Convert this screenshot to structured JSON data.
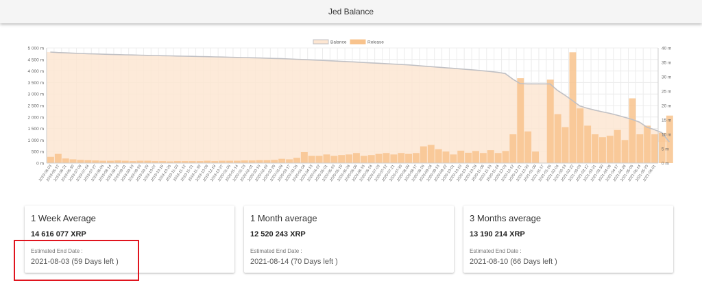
{
  "header": {
    "title": "Jed Balance"
  },
  "chart_data": {
    "type": "bar+line",
    "legend": [
      "Balance",
      "Release"
    ],
    "legend_position": "top-center",
    "colors": {
      "balance_fill": "#fde6d2",
      "balance_line": "#c0c0c4",
      "release": "#f8c38d",
      "highlight": "#e0141e"
    },
    "left_axis": {
      "ylim": [
        0,
        5000
      ],
      "ticks": [
        "0 m",
        "500 m",
        "1 000 m",
        "1 500 m",
        "2 000 m",
        "2 500 m",
        "3 000 m",
        "3 500 m",
        "4 000 m",
        "4 500 m",
        "5 000 m"
      ]
    },
    "right_axis": {
      "ylim": [
        0,
        40
      ],
      "ticks": [
        "0 m",
        "5 m",
        "10 m",
        "15 m",
        "20 m",
        "25 m",
        "30 m",
        "35 m",
        "40 m"
      ]
    },
    "x_ticks": [
      "2019-06-03",
      "2019-06-12",
      "2019-06-21",
      "2019-06-30",
      "2019-07-09",
      "2019-07-18",
      "2019-07-27",
      "2019-08-05",
      "2019-08-14",
      "2019-08-23",
      "2019-09-01",
      "2019-09-10",
      "2019-09-19",
      "2019-09-28",
      "2019-10-07",
      "2019-10-16",
      "2019-10-25",
      "2019-11-03",
      "2019-11-12",
      "2019-11-21",
      "2019-11-30",
      "2019-12-09",
      "2019-12-18",
      "2019-12-27",
      "2020-01-05",
      "2020-01-14",
      "2020-01-23",
      "2020-02-01",
      "2020-02-10",
      "2020-02-19",
      "2020-02-28",
      "2020-03-08",
      "2020-03-17",
      "2020-03-26",
      "2020-04-04",
      "2020-04-13",
      "2020-04-22",
      "2020-05-01",
      "2020-05-10",
      "2020-05-19",
      "2020-05-28",
      "2020-06-06",
      "2020-06-15",
      "2020-06-24",
      "2020-07-03",
      "2020-07-12",
      "2020-07-21",
      "2020-07-30",
      "2020-08-08",
      "2020-08-17",
      "2020-08-26",
      "2020-09-04",
      "2020-09-13",
      "2020-09-22",
      "2020-10-01",
      "2020-10-10",
      "2020-10-19",
      "2020-10-28",
      "2020-11-06",
      "2020-11-15",
      "2020-11-24",
      "2020-12-03",
      "2020-12-12",
      "2020-12-21",
      "2020-12-30",
      "2021-01-08",
      "2021-01-17",
      "2021-01-26",
      "2021-02-04",
      "2021-02-13",
      "2021-02-22",
      "2021-03-03",
      "2021-03-12",
      "2021-03-21",
      "2021-03-30",
      "2021-04-08",
      "2021-04-17",
      "2021-04-26",
      "2021-05-05",
      "2021-05-14",
      "2021-05-23",
      "2021-06-01"
    ],
    "balance": [
      4820,
      4800,
      4790,
      4775,
      4762,
      4750,
      4740,
      4730,
      4720,
      4712,
      4703,
      4695,
      4687,
      4680,
      4672,
      4665,
      4658,
      4650,
      4643,
      4636,
      4629,
      4621,
      4614,
      4606,
      4598,
      4590,
      4582,
      4574,
      4565,
      4556,
      4546,
      4535,
      4523,
      4510,
      4496,
      4482,
      4468,
      4453,
      4437,
      4420,
      4404,
      4387,
      4370,
      4352,
      4335,
      4317,
      4300,
      4282,
      4264,
      4240,
      4215,
      4190,
      4165,
      4140,
      4115,
      4090,
      4065,
      4040,
      4010,
      3980,
      3940,
      3890,
      3650,
      3450,
      3440,
      3440,
      3440,
      3440,
      3160,
      2950,
      2720,
      2480,
      2380,
      2300,
      2230,
      2160,
      2080,
      1990,
      1900,
      1780,
      1560,
      1450,
      1320,
      920
    ],
    "release": [
      2.2,
      3.2,
      1.6,
      1.3,
      1.1,
      1.0,
      0.9,
      0.8,
      0.8,
      0.9,
      0.8,
      0.7,
      0.8,
      0.8,
      0.7,
      0.7,
      0.6,
      0.7,
      0.7,
      0.7,
      0.7,
      0.8,
      0.7,
      0.8,
      0.8,
      0.8,
      0.9,
      0.9,
      1.0,
      1.0,
      1.1,
      1.5,
      1.3,
      1.8,
      3.8,
      2.5,
      2.5,
      3.0,
      2.5,
      2.8,
      3.0,
      3.5,
      2.5,
      2.8,
      3.2,
      3.5,
      3.0,
      3.5,
      3.2,
      3.5,
      5.8,
      6.3,
      4.8,
      4.0,
      3.0,
      4.3,
      3.6,
      4.2,
      3.5,
      4.5,
      3.5,
      4.2,
      10.0,
      29.5,
      11.0,
      4.0,
      0,
      29.0,
      17.0,
      12.5,
      38.5,
      19.0,
      13.0,
      10.0,
      9.0,
      9.5,
      11.5,
      8.0,
      22.5,
      10.0,
      13.0,
      10.0,
      10.5,
      16.5
    ],
    "grid": true
  },
  "cards": [
    {
      "title": "1 Week Average",
      "value": "14 616 077 XRP",
      "end_label": "Estimated End Date :",
      "end_date": "2021-08-03 (59 Days left )"
    },
    {
      "title": "1 Month average",
      "value": "12 520 243 XRP",
      "end_label": "Estimated End Date :",
      "end_date": "2021-08-14 (70 Days left )"
    },
    {
      "title": "3 Months average",
      "value": "13 190 214 XRP",
      "end_label": "Estimated End Date :",
      "end_date": "2021-08-10 (66 Days left )"
    }
  ]
}
